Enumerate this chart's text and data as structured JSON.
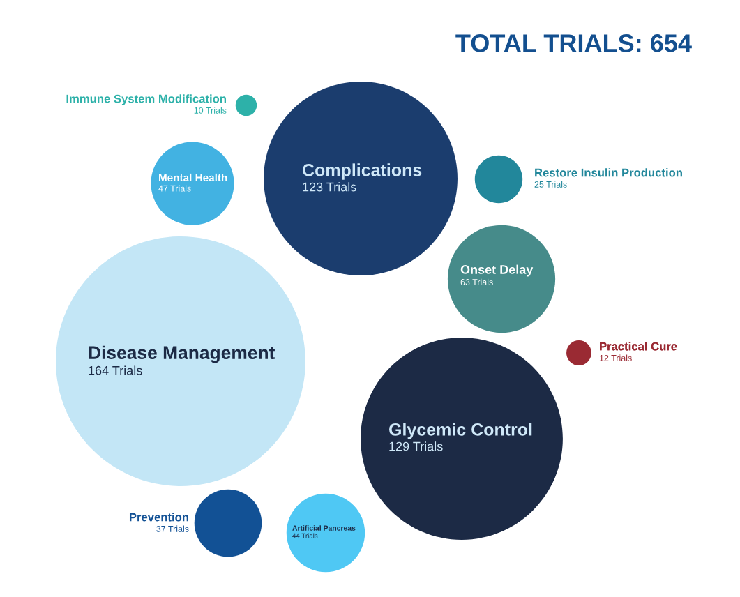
{
  "chart_data": {
    "type": "other",
    "title": "TOTAL TRIALS: 654",
    "categories": [
      "Immune System Modification",
      "Mental Health",
      "Complications",
      "Restore Insulin Production",
      "Onset Delay",
      "Disease Management",
      "Practical Cure",
      "Glycemic Control",
      "Prevention",
      "Artificial Pancreas"
    ],
    "values": [
      10,
      47,
      123,
      25,
      63,
      164,
      12,
      129,
      37,
      44
    ],
    "value_labels": [
      "10 Trials",
      "47 Trials",
      "123 Trials",
      "25 Trials",
      "63 Trials",
      "164 Trials",
      "12 Trials",
      "129 Trials",
      "37 Trials",
      "44 Trials"
    ],
    "colors": [
      "#2db1a9",
      "#42b2e2",
      "#1b3d6e",
      "#22879b",
      "#468b8a",
      "#c3e6f6",
      "#9a2a33",
      "#1c2a45",
      "#125195",
      "#4fc8f4"
    ]
  }
}
